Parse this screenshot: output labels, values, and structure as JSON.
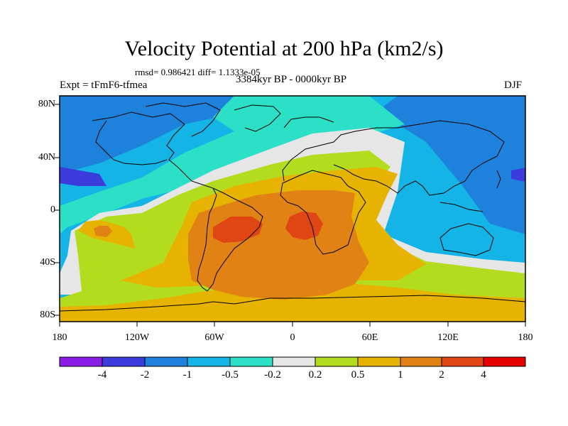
{
  "title": "Velocity Potential at 200 hPa (km2/s)",
  "stats": "rmsd= 0.986421 diff= 1.1333e-05",
  "experiment": "Expt = tFmF6-tfmea",
  "period": "3384kyr BP - 0000kyr BP",
  "season": "DJF",
  "latitude_labels": [
    "80N",
    "40N",
    "0",
    "40S",
    "80S"
  ],
  "longitude_labels": [
    "180",
    "120W",
    "60W",
    "0",
    "60E",
    "120E",
    "180"
  ],
  "colorbar": {
    "labels": [
      "-4",
      "-2",
      "-1",
      "-0.5",
      "-0.2",
      "0.2",
      "0.5",
      "1",
      "2",
      "4"
    ],
    "colors": [
      "#8a1ee6",
      "#3c3cdc",
      "#1e82dc",
      "#14b4e6",
      "#2ce0c8",
      "#e6e6e6",
      "#b4dc1e",
      "#e6b400",
      "#e08214",
      "#e04614",
      "#e60000"
    ]
  }
}
